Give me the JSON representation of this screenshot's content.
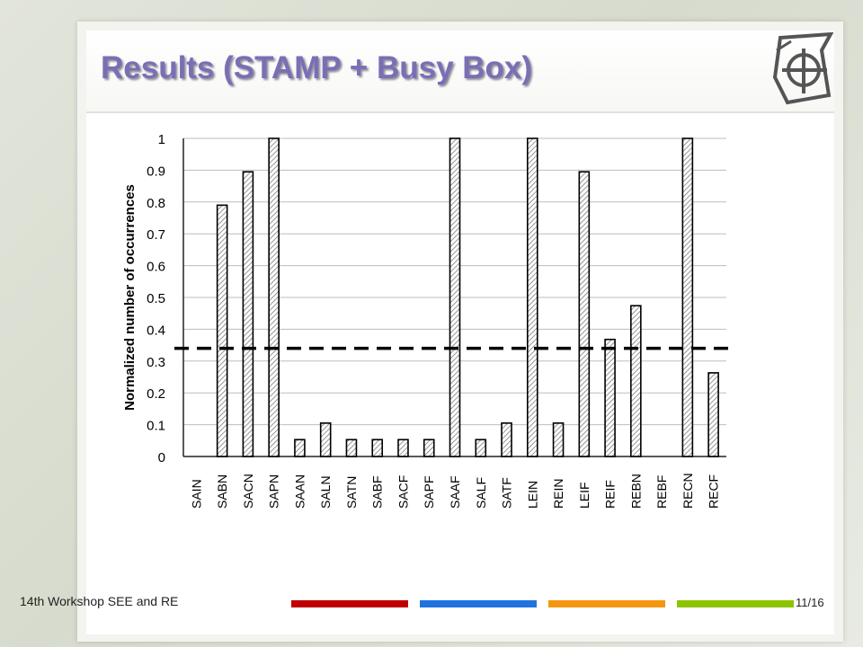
{
  "slide": {
    "title": "Results (STAMP + Busy Box)",
    "footer_text": "14th Workshop SEE and RE",
    "slide_number": "11/16",
    "footer_bar_colors": [
      "#c00000",
      "#1f73e0",
      "#f4960f",
      "#8cc400"
    ]
  },
  "chart_data": {
    "type": "bar",
    "ylabel": "Normalized number of occurrences",
    "xlabel": "",
    "ylim": [
      0,
      1
    ],
    "yticks": [
      "0",
      "0.1",
      "0.2",
      "0.3",
      "0.4",
      "0.5",
      "0.6",
      "0.7",
      "0.8",
      "0.9",
      "1"
    ],
    "grid": true,
    "bar_style": "diagonal-hatch",
    "categories": [
      "SAIN",
      "SABN",
      "SACN",
      "SAPN",
      "SAAN",
      "SALN",
      "SATN",
      "SABF",
      "SACF",
      "SAPF",
      "SAAF",
      "SALF",
      "SATF",
      "LEIN",
      "REIN",
      "LEIF",
      "REIF",
      "REBN",
      "REBF",
      "RECN",
      "RECF"
    ],
    "values": [
      0,
      0.79,
      0.895,
      1,
      0.053,
      0.105,
      0.053,
      0.053,
      0.053,
      0.053,
      1,
      0.053,
      0.105,
      1,
      0.105,
      0.895,
      0.368,
      0.474,
      0,
      1,
      0.263
    ],
    "threshold": 0.34,
    "threshold_style": "dashed"
  }
}
